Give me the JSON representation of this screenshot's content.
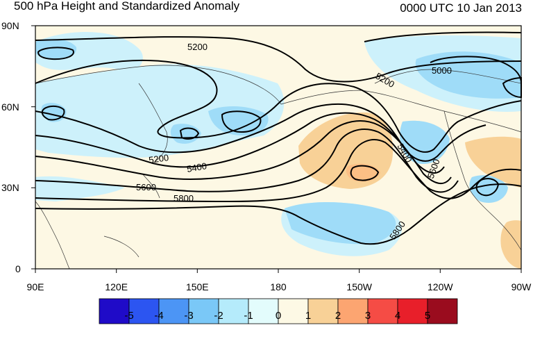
{
  "title": "500 hPa Height and Standardized Anomaly",
  "timestamp": "0000 UTC 10 Jan 2013",
  "lat_ticks": [
    "90N",
    "60N",
    "30N",
    "0"
  ],
  "lon_ticks": [
    "90E",
    "120E",
    "150E",
    "180",
    "150W",
    "120W",
    "90W"
  ],
  "contour_labels": [
    "5200",
    "5200",
    "5000",
    "5200",
    "5400",
    "5400",
    "5600",
    "5600",
    "5800",
    "5800"
  ],
  "colorbar": {
    "labels": [
      "-5",
      "-4",
      "-3",
      "-2",
      "-1",
      "0",
      "1",
      "2",
      "3",
      "4",
      "5"
    ],
    "colors": [
      "#1f0bc8",
      "#2c55f1",
      "#4c95f5",
      "#7ac8f7",
      "#b5ebfb",
      "#e3fcfc",
      "#fdf9e5",
      "#f8d197",
      "#fca571",
      "#f54c45",
      "#e81f2a",
      "#9a0c1e"
    ]
  },
  "map_colors": {
    "land": "#fdf9e5",
    "ocean_base": "#fdf6e0",
    "neg1": "#cdf1fb",
    "neg2": "#9fdcf8",
    "neg3": "#7ac8f7",
    "pos2": "#f8d197",
    "pos3": "#fcbf85"
  }
}
